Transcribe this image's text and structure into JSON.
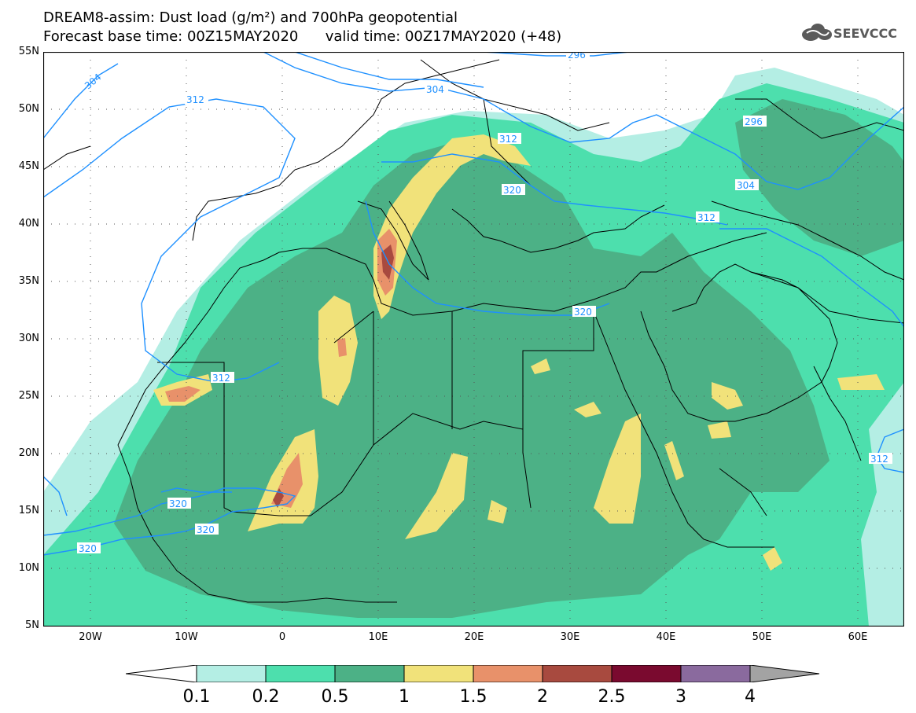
{
  "header": {
    "title_line1": "DREAM8-assim: Dust load (g/m²) and 700hPa geopotential",
    "title_line2": "Forecast base time: 00Z15MAY2020      valid time: 00Z17MAY2020 (+48)",
    "logo_text": "SEEVCCC"
  },
  "map": {
    "lat_labels": [
      "55N",
      "50N",
      "45N",
      "40N",
      "35N",
      "30N",
      "25N",
      "20N",
      "15N",
      "10N",
      "5N"
    ],
    "lon_labels": [
      "20W",
      "10W",
      "0",
      "10E",
      "20E",
      "30E",
      "40E",
      "50E",
      "60E"
    ],
    "contour_labels": [
      "296",
      "304",
      "304",
      "312",
      "312",
      "320",
      "320",
      "312",
      "304",
      "296",
      "312",
      "320",
      "320",
      "312",
      "320"
    ],
    "contour_color": "#1e90ff",
    "land_color": "#ffffff",
    "border_color": "#000000"
  },
  "colorbar": {
    "labels": [
      "0.1",
      "0.2",
      "0.5",
      "1",
      "1.5",
      "2",
      "2.5",
      "3",
      "4"
    ],
    "colors": [
      "#b4eee4",
      "#4ddfad",
      "#4cb186",
      "#f1e27a",
      "#e8916a",
      "#a84a3f",
      "#7a0a2f",
      "#8a6a9e",
      "#a3a3a3"
    ]
  }
}
